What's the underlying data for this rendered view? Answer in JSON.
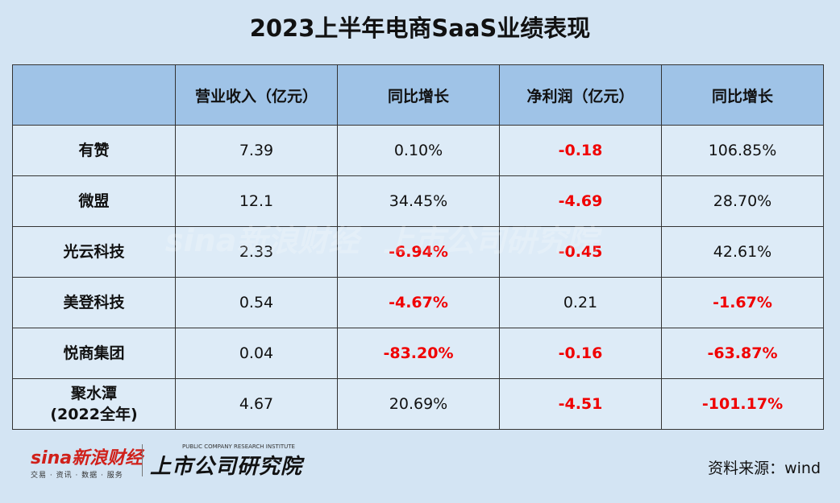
{
  "title": "2023上半年电商SaaS业绩表现",
  "table": {
    "header": [
      "",
      "营业收入（亿元）",
      "同比增长",
      "净利润（亿元）",
      "同比增长"
    ],
    "rows": [
      [
        [
          "有赞"
        ],
        "7.39",
        "0.10%",
        "-0.18",
        "106.85%"
      ],
      [
        [
          "微盟"
        ],
        "12.1",
        "34.45%",
        "-4.69",
        "28.70%"
      ],
      [
        [
          "光云科技"
        ],
        "2.33",
        "-6.94%",
        "-0.45",
        "42.61%"
      ],
      [
        [
          "美登科技"
        ],
        "0.54",
        "-4.67%",
        "0.21",
        "-1.67%"
      ],
      [
        [
          "悦商集团"
        ],
        "0.04",
        "-83.20%",
        "-0.16",
        "-63.87%"
      ],
      [
        [
          "聚水潭",
          "(2022全年)"
        ],
        "4.67",
        "20.69%",
        "-4.51",
        "-101.17%"
      ]
    ]
  },
  "logo": {
    "sina": "sina新浪财经",
    "sina_tagline": "交易 · 资讯 · 数据 · 服务",
    "institute_en": "PUBLIC COMPANY RESEARCH INSTITUTE",
    "institute_cn": "上市公司研究院"
  },
  "source": "资料来源：wind"
}
